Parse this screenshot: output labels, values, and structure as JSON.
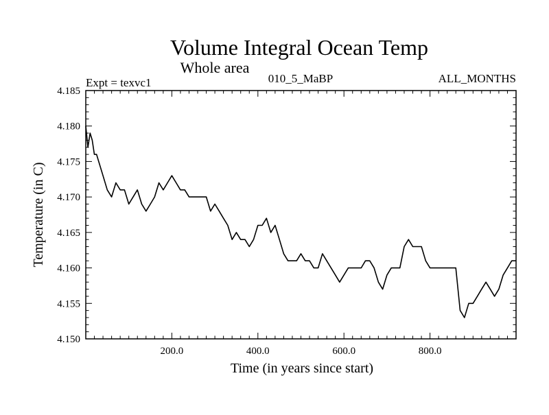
{
  "chart_data": {
    "type": "line",
    "title": "Volume Integral Ocean Temp",
    "subtitle": "Whole area",
    "annotations": {
      "left": "Expt = texvc1",
      "center": "010_5_MaBP",
      "right": "ALL_MONTHS"
    },
    "xlabel": "Time (in years since start)",
    "ylabel": "Temperature (in C)",
    "xlim": [
      0,
      1000
    ],
    "ylim": [
      4.15,
      4.185
    ],
    "x_tick_labels": [
      {
        "value": 200,
        "label": "200.0"
      },
      {
        "value": 400,
        "label": "400.0"
      },
      {
        "value": 600,
        "label": "600.0"
      },
      {
        "value": 800,
        "label": "800.0"
      }
    ],
    "y_tick_labels": [
      {
        "value": 4.15,
        "label": "4.150"
      },
      {
        "value": 4.155,
        "label": "4.155"
      },
      {
        "value": 4.16,
        "label": "4.160"
      },
      {
        "value": 4.165,
        "label": "4.165"
      },
      {
        "value": 4.17,
        "label": "4.170"
      },
      {
        "value": 4.175,
        "label": "4.175"
      },
      {
        "value": 4.18,
        "label": "4.180"
      },
      {
        "value": 4.185,
        "label": "4.185"
      }
    ],
    "x_major_step": 200,
    "x_minor_step": 20,
    "y_minor_step": 0.001,
    "grid": false,
    "series": [
      {
        "name": "volume-integral-ocean-temp",
        "color": "#000000",
        "x": [
          0,
          5,
          10,
          15,
          20,
          25,
          30,
          40,
          50,
          60,
          70,
          80,
          90,
          100,
          110,
          120,
          130,
          140,
          150,
          160,
          170,
          180,
          190,
          200,
          210,
          220,
          230,
          240,
          250,
          260,
          270,
          280,
          290,
          300,
          310,
          320,
          330,
          340,
          350,
          360,
          370,
          380,
          390,
          400,
          410,
          420,
          430,
          440,
          450,
          460,
          470,
          480,
          490,
          500,
          510,
          520,
          530,
          540,
          550,
          560,
          570,
          580,
          590,
          600,
          610,
          620,
          630,
          640,
          650,
          660,
          670,
          680,
          690,
          700,
          710,
          720,
          730,
          740,
          750,
          760,
          770,
          780,
          790,
          800,
          810,
          820,
          830,
          840,
          850,
          860,
          870,
          880,
          890,
          900,
          910,
          920,
          930,
          940,
          950,
          960,
          970,
          980,
          990,
          1000
        ],
        "values": [
          4.18,
          4.177,
          4.179,
          4.178,
          4.176,
          4.176,
          4.175,
          4.173,
          4.171,
          4.17,
          4.172,
          4.171,
          4.171,
          4.169,
          4.17,
          4.171,
          4.169,
          4.168,
          4.169,
          4.17,
          4.172,
          4.171,
          4.172,
          4.173,
          4.172,
          4.171,
          4.171,
          4.17,
          4.17,
          4.17,
          4.17,
          4.17,
          4.168,
          4.169,
          4.168,
          4.167,
          4.166,
          4.164,
          4.165,
          4.164,
          4.164,
          4.163,
          4.164,
          4.166,
          4.166,
          4.167,
          4.165,
          4.166,
          4.164,
          4.162,
          4.161,
          4.161,
          4.161,
          4.162,
          4.161,
          4.161,
          4.16,
          4.16,
          4.162,
          4.161,
          4.16,
          4.159,
          4.158,
          4.159,
          4.16,
          4.16,
          4.16,
          4.16,
          4.161,
          4.161,
          4.16,
          4.158,
          4.157,
          4.159,
          4.16,
          4.16,
          4.16,
          4.163,
          4.164,
          4.163,
          4.163,
          4.163,
          4.161,
          4.16,
          4.16,
          4.16,
          4.16,
          4.16,
          4.16,
          4.16,
          4.154,
          4.153,
          4.155,
          4.155,
          4.156,
          4.157,
          4.158,
          4.157,
          4.156,
          4.157,
          4.159,
          4.16,
          4.161,
          4.161
        ]
      }
    ]
  }
}
